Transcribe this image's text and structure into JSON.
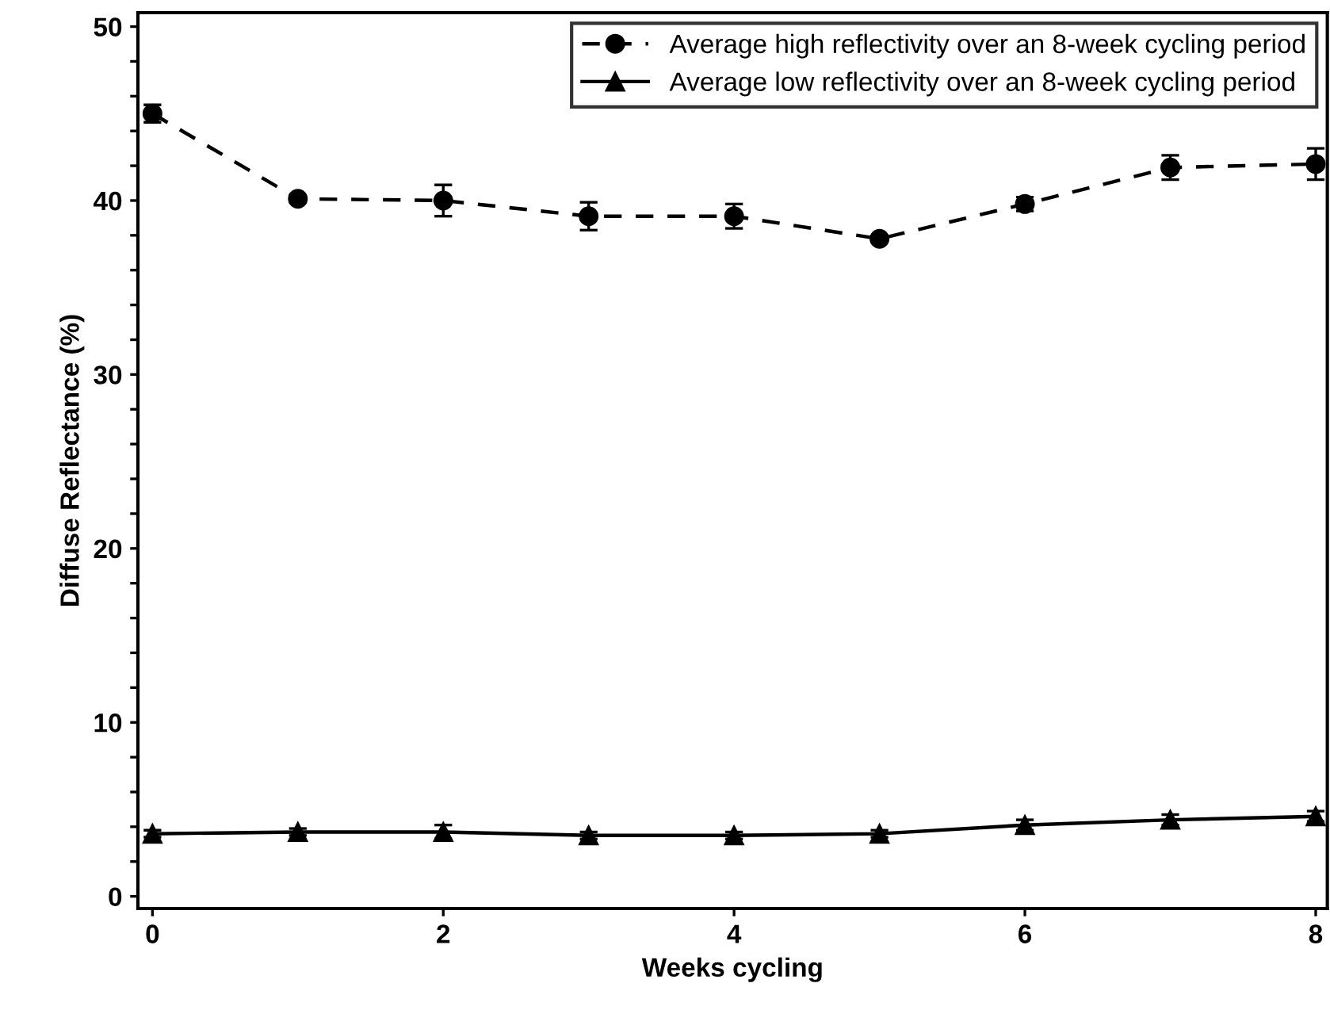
{
  "chart_data": {
    "type": "line",
    "xlabel": "Weeks cycling",
    "ylabel": "Diffuse Reflectance (%)",
    "x": [
      0,
      1,
      2,
      3,
      4,
      5,
      6,
      7,
      8
    ],
    "series": [
      {
        "name": "Average high reflectivity over an 8-week cycling period",
        "color": "#000000",
        "marker": "circle",
        "line_style": "dashed",
        "values": [
          45.0,
          40.1,
          40.0,
          39.1,
          39.1,
          37.8,
          39.8,
          41.9,
          42.1
        ],
        "errors": [
          0.5,
          0.2,
          0.9,
          0.8,
          0.7,
          0.1,
          0.4,
          0.7,
          0.9
        ]
      },
      {
        "name": "Average low reflectivity over an 8-week cycling period",
        "color": "#000000",
        "marker": "triangle",
        "line_style": "solid",
        "values": [
          3.6,
          3.7,
          3.7,
          3.5,
          3.5,
          3.6,
          4.1,
          4.4,
          4.6
        ],
        "errors": [
          0.2,
          0.2,
          0.4,
          0.2,
          0.2,
          0.2,
          0.3,
          0.3,
          0.3
        ]
      }
    ],
    "xlim": [
      -0.1,
      8.08
    ],
    "ylim": [
      -0.7,
      50.8
    ],
    "xticks": [
      0,
      2,
      4,
      6,
      8
    ],
    "yticks": [
      0,
      {
        "value": 2,
        "label": null
      },
      {
        "value": 4,
        "label": null
      },
      {
        "value": 6,
        "label": null
      },
      {
        "value": 8,
        "label": null
      },
      10,
      {
        "value": 12,
        "label": null
      },
      {
        "value": 14,
        "label": null
      },
      {
        "value": 16,
        "label": null
      },
      {
        "value": 18,
        "label": null
      },
      20,
      {
        "value": 22,
        "label": null
      },
      {
        "value": 24,
        "label": null
      },
      {
        "value": 26,
        "label": null
      },
      {
        "value": 28,
        "label": null
      },
      30,
      {
        "value": 32,
        "label": null
      },
      {
        "value": 34,
        "label": null
      },
      {
        "value": 36,
        "label": null
      },
      {
        "value": 38,
        "label": null
      },
      40,
      {
        "value": 42,
        "label": null
      },
      {
        "value": 44,
        "label": null
      },
      {
        "value": 46,
        "label": null
      },
      {
        "value": 48,
        "label": null
      },
      50
    ],
    "grid": false,
    "legend": "top right"
  }
}
